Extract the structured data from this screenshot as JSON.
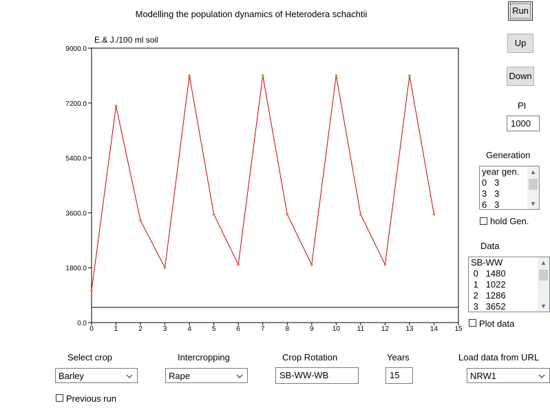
{
  "title": "Modelling the population dynamics of Heterodera schachtii",
  "buttons": {
    "run": "Run",
    "up": "Up",
    "down": "Down"
  },
  "pi": {
    "label": "PI",
    "value": "1000"
  },
  "generation": {
    "label": "Generation",
    "rows": [
      "year gen.",
      "0   3",
      "3   3",
      "6   3"
    ],
    "hold_label": "hold Gen."
  },
  "data_panel": {
    "label": "Data",
    "rows": [
      "SB-WW",
      " 0   1480",
      " 1   1022",
      " 2   1286",
      " 3   3652"
    ],
    "plot_label": "Plot data"
  },
  "controls": {
    "select_crop": {
      "label": "Select crop",
      "value": "Barley"
    },
    "intercropping": {
      "label": "Intercropping",
      "value": "Rape"
    },
    "crop_rotation": {
      "label": "Crop Rotation",
      "value": "SB-WW-WB"
    },
    "years": {
      "label": "Years",
      "value": "15"
    },
    "load_url": {
      "label": "Load data from URL",
      "value": "NRW1"
    },
    "previous_run": "Previous run"
  },
  "chart_data": {
    "type": "line",
    "ylabel": "E.& J./100 ml soil",
    "xlim": [
      0,
      15
    ],
    "ylim": [
      0,
      9000
    ],
    "x_ticks": [
      "0",
      "1",
      "2",
      "3",
      "4",
      "5",
      "6",
      "7",
      "8",
      "9",
      "10",
      "11",
      "12",
      "13",
      "14",
      "15"
    ],
    "y_ticks": [
      "0.0",
      "1800.0",
      "3600.0",
      "5400.0",
      "7200.0",
      "9000.0"
    ],
    "x": [
      0,
      1,
      2,
      3,
      4,
      5,
      6,
      7,
      8,
      9,
      10,
      11,
      12,
      13,
      14
    ],
    "series": [
      {
        "values": [
          1050,
          7100,
          3350,
          1800,
          8100,
          3550,
          1900,
          8100,
          3550,
          1900,
          8100,
          3550,
          1900,
          8100,
          3550
        ]
      }
    ],
    "reference_line": 500,
    "colors": {
      "line": "#cc0000",
      "marker": "#cc8844",
      "reference": "#000000"
    }
  }
}
